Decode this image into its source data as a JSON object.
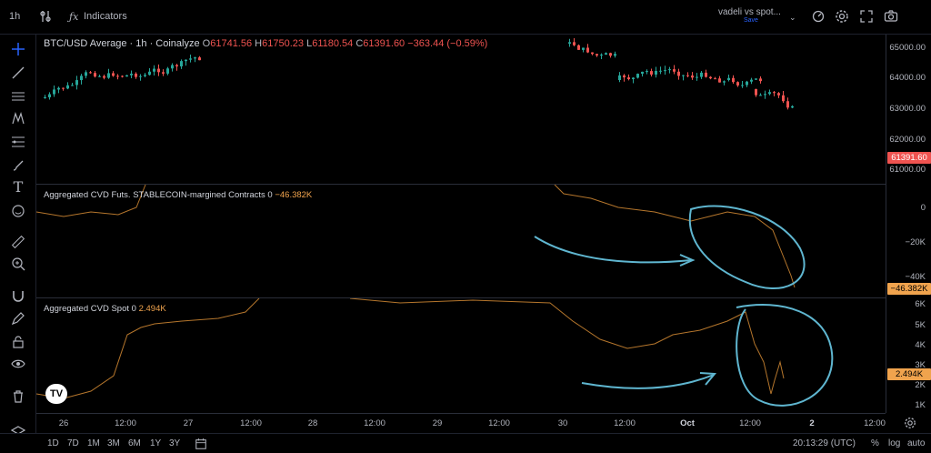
{
  "topbar": {
    "interval": "1h",
    "indicators_label": "Indicators",
    "layout_name": "vadeli vs spot...",
    "layout_status": "Save"
  },
  "main": {
    "legend": {
      "symbol": "BTC/USD Average · 1h · Coinalyze",
      "open_label": "O",
      "open": "61741.56",
      "high_label": "H",
      "high": "61750.23",
      "low_label": "L",
      "low": "61180.54",
      "close_label": "C",
      "close": "61391.60",
      "change": "−363.44 (−0.59%)"
    },
    "price_axis": [
      "65000.00",
      "64000.00",
      "63000.00",
      "62000.00",
      "61000.00"
    ],
    "last_price_tag": "61391.60"
  },
  "cvd_futures": {
    "legend": "Aggregated CVD Futs. STABLECOIN-margined Contracts 0",
    "value": "−46.382K",
    "axis": [
      "0",
      "−20K",
      "−40K"
    ],
    "tag": "−46.382K"
  },
  "cvd_spot": {
    "legend": "Aggregated CVD Spot 0",
    "value": "2.494K",
    "axis": [
      "6K",
      "5K",
      "4K",
      "3K",
      "2K",
      "1K"
    ],
    "tag": "2.494K"
  },
  "time_axis": [
    "26",
    "12:00",
    "27",
    "12:00",
    "28",
    "12:00",
    "29",
    "12:00",
    "30",
    "12:00",
    "Oct",
    "12:00",
    "2",
    "12:00"
  ],
  "bottombar": {
    "ranges": [
      "1D",
      "7D",
      "1M",
      "3M",
      "6M",
      "1Y",
      "3Y"
    ],
    "clock": "20:13:29 (UTC)",
    "percent": "%",
    "log": "log",
    "auto": "auto"
  },
  "logo_text": "TV",
  "colors": {
    "up": "#26a69a",
    "down": "#ef5350",
    "cvd_line": "#b5762c",
    "annotation": "#5fb6d0",
    "accent": "#2962ff"
  }
}
